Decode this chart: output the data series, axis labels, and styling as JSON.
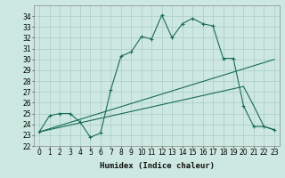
{
  "xlabel": "Humidex (Indice chaleur)",
  "bg_color": "#cce8e0",
  "grid_color": "#aaccc4",
  "line_color": "#1a6b5a",
  "xlim": [
    -0.5,
    23.5
  ],
  "ylim": [
    22,
    35
  ],
  "xticks": [
    0,
    1,
    2,
    3,
    4,
    5,
    6,
    7,
    8,
    9,
    10,
    11,
    12,
    13,
    14,
    15,
    16,
    17,
    18,
    19,
    20,
    21,
    22,
    23
  ],
  "yticks": [
    22,
    23,
    24,
    25,
    26,
    27,
    28,
    29,
    30,
    31,
    32,
    33,
    34
  ],
  "series1_x": [
    0,
    1,
    2,
    3,
    4,
    5,
    6,
    7,
    8,
    9,
    10,
    11,
    12,
    13,
    14,
    15,
    16,
    17,
    18,
    19,
    20,
    21,
    22,
    23
  ],
  "series1_y": [
    23.3,
    24.8,
    25.0,
    25.0,
    24.2,
    22.8,
    23.2,
    27.2,
    30.3,
    30.7,
    32.1,
    31.9,
    34.1,
    32.0,
    33.3,
    33.8,
    33.3,
    33.1,
    30.1,
    30.1,
    25.7,
    23.8,
    23.8,
    23.5
  ],
  "series2_x": [
    0,
    23
  ],
  "series2_y": [
    23.3,
    30.0
  ],
  "series3_x": [
    0,
    20,
    21,
    22,
    23
  ],
  "series3_y": [
    23.3,
    27.5,
    25.7,
    23.8,
    23.5
  ]
}
